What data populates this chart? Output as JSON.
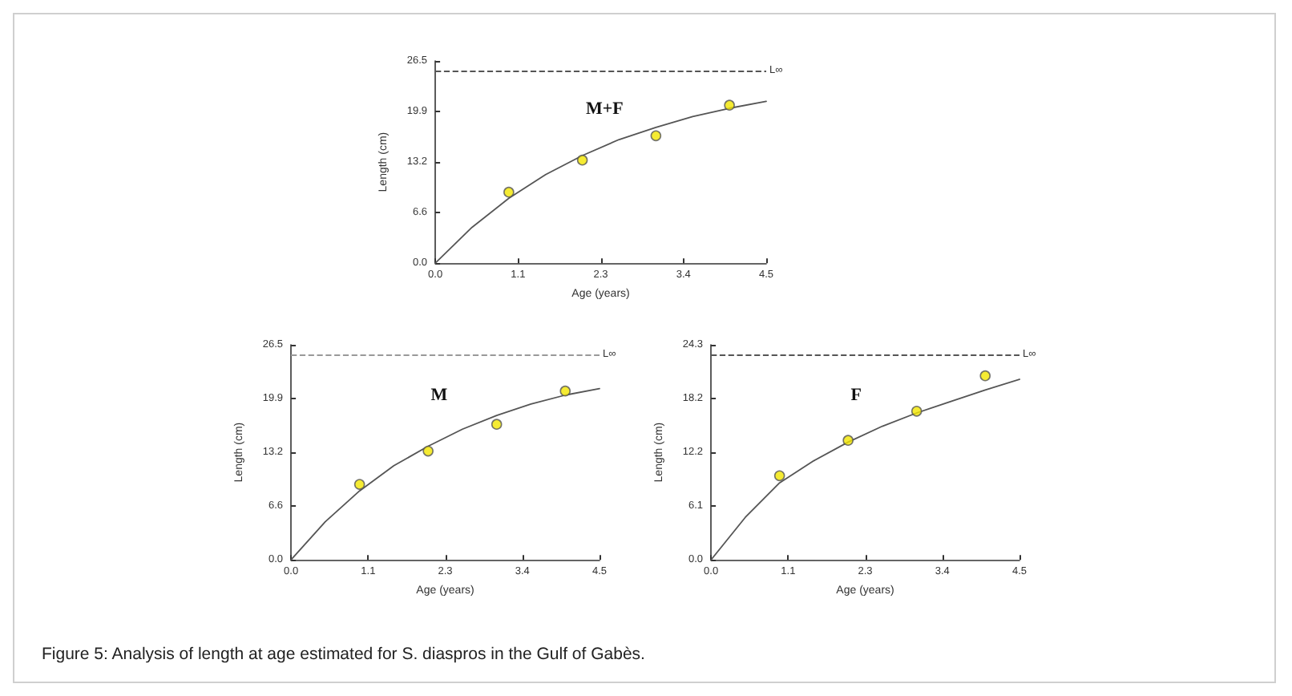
{
  "chart_data": [
    {
      "type": "scatter",
      "title": "M+F",
      "xlabel": "Age (years)",
      "ylabel": "Length (cm)",
      "xlim": [
        0,
        4.5
      ],
      "ylim": [
        0,
        26.5
      ],
      "xticks": [
        {
          "value": 0,
          "label": "0.0"
        },
        {
          "value": 1.125,
          "label": "1.1"
        },
        {
          "value": 2.25,
          "label": "2.3"
        },
        {
          "value": 3.375,
          "label": "3.4"
        },
        {
          "value": 4.5,
          "label": "4.5"
        }
      ],
      "yticks": [
        {
          "value": 0,
          "label": "0.0"
        },
        {
          "value": 6.625,
          "label": "6.6"
        },
        {
          "value": 13.25,
          "label": "13.2"
        },
        {
          "value": 19.875,
          "label": "19.9"
        },
        {
          "value": 26.5,
          "label": "26.5"
        }
      ],
      "series": [
        {
          "type": "line",
          "color": "#555555",
          "line_style": "solid",
          "marker": "none",
          "x": [
            0,
            0.5,
            1,
            1.5,
            2,
            2.5,
            3,
            3.5,
            4,
            4.5
          ],
          "values": [
            0,
            4.7,
            8.5,
            11.6,
            14.1,
            16.2,
            17.8,
            19.2,
            20.3,
            21.2
          ]
        },
        {
          "color": "#f2e600",
          "marker": "circle",
          "x": [
            1.0,
            2.0,
            3.0,
            4.0
          ],
          "values": [
            9.3,
            13.5,
            16.7,
            20.7
          ]
        }
      ],
      "ref_lines": [
        {
          "axis": "y",
          "value": 25.2,
          "label": "L∞",
          "color": "#555555",
          "line_style": "dashed"
        }
      ],
      "grid": false
    },
    {
      "type": "scatter",
      "title": "M",
      "xlabel": "Age (years)",
      "ylabel": "Length (cm)",
      "xlim": [
        0,
        4.5
      ],
      "ylim": [
        0,
        26.5
      ],
      "xticks": [
        {
          "value": 0,
          "label": "0.0"
        },
        {
          "value": 1.125,
          "label": "1.1"
        },
        {
          "value": 2.25,
          "label": "2.3"
        },
        {
          "value": 3.375,
          "label": "3.4"
        },
        {
          "value": 4.5,
          "label": "4.5"
        }
      ],
      "yticks": [
        {
          "value": 0,
          "label": "0.0"
        },
        {
          "value": 6.625,
          "label": "6.6"
        },
        {
          "value": 13.25,
          "label": "13.2"
        },
        {
          "value": 19.875,
          "label": "19.9"
        },
        {
          "value": 26.5,
          "label": "26.5"
        }
      ],
      "series": [
        {
          "type": "line",
          "color": "#555555",
          "line_style": "solid",
          "marker": "none",
          "x": [
            0,
            0.5,
            1,
            1.5,
            2,
            2.5,
            3,
            3.5,
            4,
            4.5
          ],
          "values": [
            0,
            4.7,
            8.5,
            11.6,
            14.0,
            16.1,
            17.8,
            19.2,
            20.3,
            21.1
          ]
        },
        {
          "color": "#f2e600",
          "marker": "circle",
          "x": [
            1.0,
            2.0,
            3.0,
            4.0
          ],
          "values": [
            9.3,
            13.4,
            16.7,
            20.8
          ]
        }
      ],
      "ref_lines": [
        {
          "axis": "y",
          "value": 25.3,
          "label": "L∞",
          "color": "#999999",
          "line_style": "dashed"
        }
      ],
      "grid": false
    },
    {
      "type": "scatter",
      "title": "F",
      "xlabel": "Age (years)",
      "ylabel": "Length (cm)",
      "xlim": [
        0,
        4.5
      ],
      "ylim": [
        0,
        24.3
      ],
      "xticks": [
        {
          "value": 0,
          "label": "0.0"
        },
        {
          "value": 1.125,
          "label": "1.1"
        },
        {
          "value": 2.25,
          "label": "2.3"
        },
        {
          "value": 3.375,
          "label": "3.4"
        },
        {
          "value": 4.5,
          "label": "4.5"
        }
      ],
      "yticks": [
        {
          "value": 0,
          "label": "0.0"
        },
        {
          "value": 6.075,
          "label": "6.1"
        },
        {
          "value": 12.15,
          "label": "12.2"
        },
        {
          "value": 18.225,
          "label": "18.2"
        },
        {
          "value": 24.3,
          "label": "24.3"
        }
      ],
      "series": [
        {
          "type": "line",
          "color": "#555555",
          "line_style": "solid",
          "marker": "none",
          "x": [
            0,
            0.5,
            1,
            1.5,
            2,
            2.5,
            3,
            3.5,
            4,
            4.5
          ],
          "values": [
            0,
            4.8,
            8.7,
            11.2,
            13.3,
            15.1,
            16.6,
            17.9,
            19.2,
            20.4
          ]
        },
        {
          "color": "#f2e600",
          "marker": "circle",
          "x": [
            1.0,
            2.0,
            3.0,
            4.0
          ],
          "values": [
            9.5,
            13.5,
            16.8,
            20.8
          ]
        }
      ],
      "ref_lines": [
        {
          "axis": "y",
          "value": 23.2,
          "label": "L∞",
          "color": "#555555",
          "line_style": "dashed"
        }
      ],
      "grid": false,
      "annotations": [
        "Figure 5: Analysis of length at age estimated for S. diaspros in the Gulf of Gabès."
      ]
    }
  ]
}
